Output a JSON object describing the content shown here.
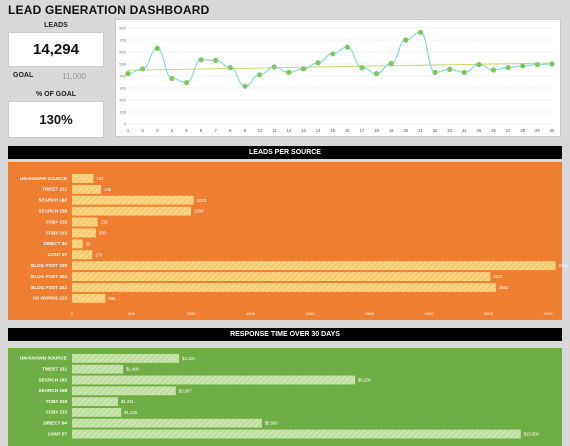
{
  "title": "LEAD GENERATION DASHBOARD",
  "kpi": {
    "leads_label": "LEADS",
    "leads_value": "14,294",
    "goal_label": "GOAL",
    "goal_value": "11,000",
    "pct_label": "% OF GOAL",
    "pct_value": "130%"
  },
  "colors": {
    "line": "#7fd3e3",
    "marker": "#7cc85a",
    "trend": "#c8d870",
    "orange_bg": "#ee7e32",
    "orange_bar": "#fdd57f",
    "green_bg": "#6fae45",
    "green_bar": "#c9e6ad"
  },
  "chart_data": [
    {
      "type": "line",
      "x": [
        1,
        2,
        3,
        4,
        5,
        6,
        7,
        8,
        9,
        10,
        11,
        12,
        13,
        14,
        15,
        16,
        17,
        18,
        19,
        20,
        21,
        22,
        23,
        24,
        25,
        26,
        27,
        28,
        29,
        30
      ],
      "series": [
        {
          "values": [
            420,
            460,
            630,
            380,
            345,
            535,
            530,
            470,
            315,
            410,
            475,
            430,
            460,
            510,
            585,
            640,
            470,
            420,
            505,
            700,
            765,
            430,
            455,
            430,
            495,
            450,
            470,
            485,
            495,
            500
          ]
        }
      ],
      "trend": [
        448,
        508
      ],
      "ylim": [
        0,
        800
      ],
      "yticks": [
        0,
        100,
        200,
        300,
        400,
        500,
        600,
        700,
        800
      ],
      "grid": true
    },
    {
      "type": "bar",
      "orientation": "horizontal",
      "title": "LEADS PER SOURCE",
      "categories": [
        "UN-KNOWN SOURCE",
        "TWEET 211",
        "SEARCH 182",
        "SEARCH 158",
        "FCB# 219",
        "FCB# 213",
        "DIRECT 84",
        "CONT 57",
        "BLOG POST 200",
        "BLOG POST 202",
        "BLOG POST 241",
        "AD WORDS 213"
      ],
      "values": [
        180,
        245,
        1023,
        1000,
        216,
        200,
        90,
        170,
        4063,
        3516,
        3562,
        280
      ],
      "value_labels": [
        "180",
        "245",
        "1023",
        "1000",
        "216",
        "200",
        "90",
        "170",
        "4063",
        "3516",
        "3562",
        "280"
      ],
      "xlim": [
        0,
        4000
      ],
      "xticks": [
        0,
        500,
        1000,
        1500,
        2000,
        2500,
        3000,
        3500,
        4000
      ]
    },
    {
      "type": "bar",
      "orientation": "horizontal",
      "title": "RESPONSE TIME OVER 30 DAYS",
      "categories": [
        "UN-KNOWN SOURCE",
        "TWEET 211",
        "SEARCH 182",
        "SEARCH 158",
        "FCB# 219",
        "FCB# 213",
        "DIRECT 84",
        "CONT 57"
      ],
      "values": [
        3100,
        1480,
        8200,
        3007,
        1331,
        1426,
        5500,
        13000
      ],
      "value_labels": [
        "$3,100",
        "$1,480",
        "$8,200",
        "$3,007",
        "$1,331",
        "$1,426",
        "$5,500",
        "$13,000"
      ],
      "xlim": [
        0,
        13500
      ]
    }
  ]
}
